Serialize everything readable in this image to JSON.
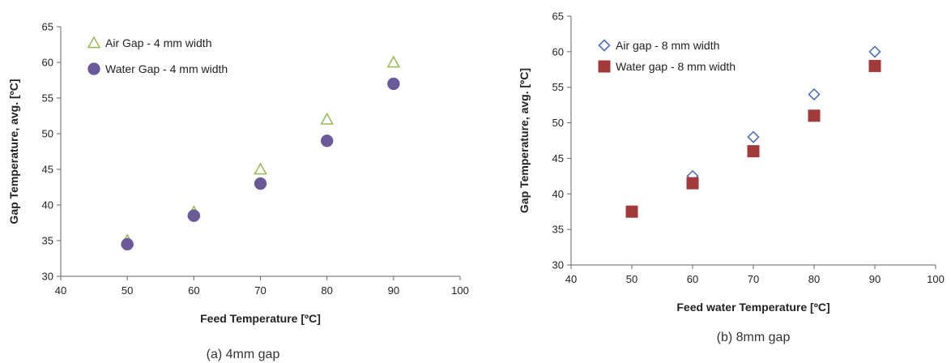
{
  "chart_data": [
    {
      "type": "scatter",
      "caption": "(a) 4mm gap",
      "xlabel": "Feed Temperature [ºC]",
      "ylabel": "Gap Temperature, avg. [ºC]",
      "xlim": [
        40,
        100
      ],
      "ylim": [
        30,
        65
      ],
      "xticks": [
        40,
        50,
        60,
        70,
        80,
        90,
        100
      ],
      "yticks": [
        30,
        35,
        40,
        45,
        50,
        55,
        60,
        65
      ],
      "grid": false,
      "legend_position": "top-left",
      "series": [
        {
          "name": "Air Gap - 4 mm width",
          "marker": "open-triangle",
          "color": "#9bbb59",
          "points": [
            [
              50,
              35
            ],
            [
              60,
              39
            ],
            [
              70,
              45
            ],
            [
              80,
              52
            ],
            [
              90,
              60
            ]
          ]
        },
        {
          "name": "Water Gap - 4 mm width",
          "marker": "filled-circle",
          "color": "#6a5a9a",
          "points": [
            [
              50,
              34.5
            ],
            [
              60,
              38.5
            ],
            [
              70,
              43
            ],
            [
              80,
              49
            ],
            [
              90,
              57
            ]
          ]
        }
      ]
    },
    {
      "type": "scatter",
      "caption": "(b) 8mm gap",
      "xlabel": "Feed water Temperature [ºC]",
      "ylabel": "Gap Temperature, avg. [ºC]",
      "xlim": [
        40,
        100
      ],
      "ylim": [
        30,
        65
      ],
      "xticks": [
        40,
        50,
        60,
        70,
        80,
        90,
        100
      ],
      "yticks": [
        30,
        35,
        40,
        45,
        50,
        55,
        60,
        65
      ],
      "grid": false,
      "legend_position": "top-left",
      "series": [
        {
          "name": "Air gap - 8 mm width",
          "marker": "open-diamond",
          "color": "#4f6fb8",
          "points": [
            [
              50,
              37.5
            ],
            [
              60,
              42.5
            ],
            [
              70,
              48
            ],
            [
              80,
              54
            ],
            [
              90,
              60
            ]
          ]
        },
        {
          "name": "Water gap - 8 mm width",
          "marker": "filled-square",
          "color": "#a33a3a",
          "points": [
            [
              50,
              37.5
            ],
            [
              60,
              41.5
            ],
            [
              70,
              46
            ],
            [
              80,
              51
            ],
            [
              90,
              58
            ]
          ]
        }
      ]
    }
  ]
}
